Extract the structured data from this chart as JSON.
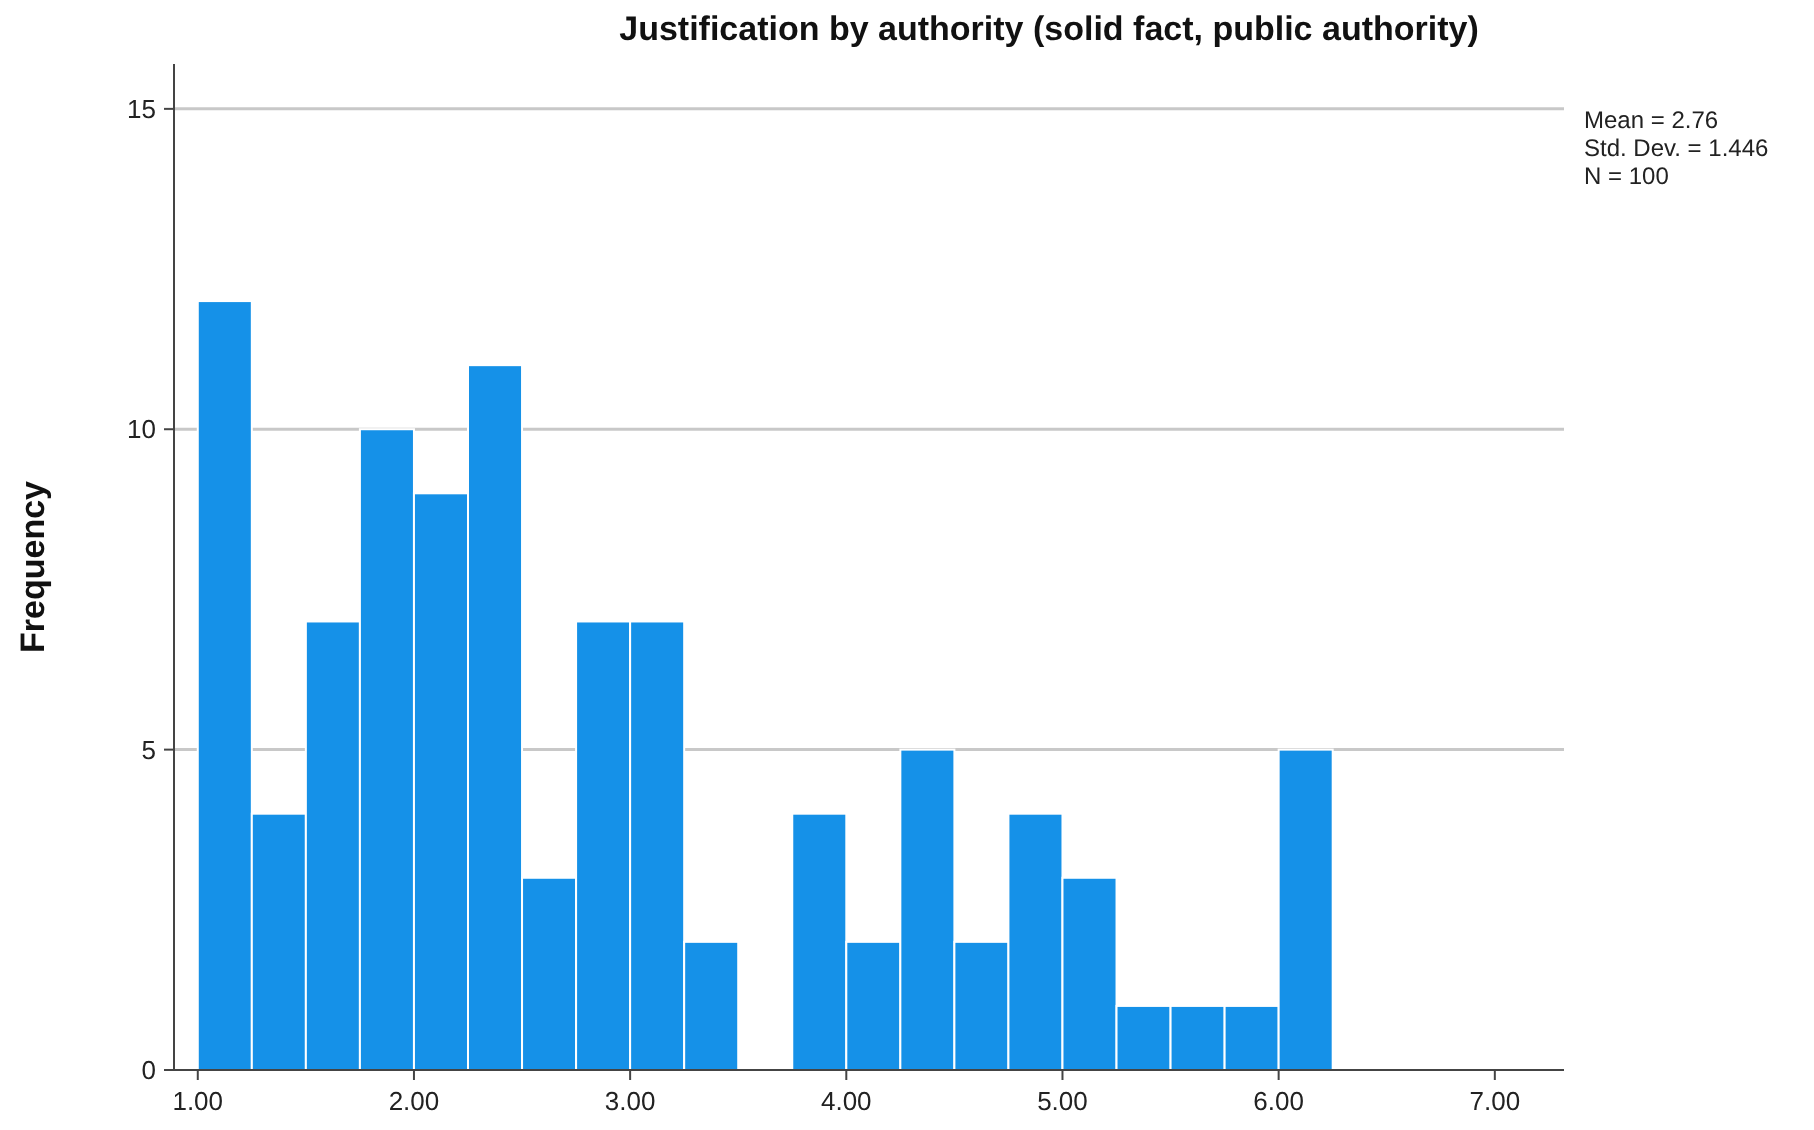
{
  "chart_data": {
    "type": "histogram",
    "title": "Justification by authority (solid fact, public authority)",
    "ylabel": "Frequency",
    "bins": [
      1,
      1.25,
      1.5,
      1.75,
      2,
      2.25,
      2.5,
      2.75,
      3,
      3.25,
      3.5,
      3.75,
      4,
      4.25,
      4.5,
      4.75,
      5,
      5.25,
      5.5,
      5.75,
      6,
      6.25
    ],
    "values": [
      12,
      4,
      7,
      10,
      9,
      11,
      3,
      7,
      7,
      2,
      0,
      4,
      2,
      5,
      2,
      4,
      3,
      1,
      1,
      1,
      5
    ],
    "color": "#1591e8",
    "xlim": [
      0.89,
      7.32
    ],
    "xticks": [
      {
        "value": 1,
        "label": "1.00"
      },
      {
        "value": 2,
        "label": "2.00"
      },
      {
        "value": 3,
        "label": "3.00"
      },
      {
        "value": 4,
        "label": "4.00"
      },
      {
        "value": 5,
        "label": "5.00"
      },
      {
        "value": 6,
        "label": "6.00"
      },
      {
        "value": 7,
        "label": "7.00"
      }
    ],
    "ylim": [
      0,
      15.7
    ],
    "yticks": [
      0,
      5,
      10,
      15
    ],
    "grid": "y",
    "annotations": [
      "Mean = 2.76",
      "Std. Dev. = 1.446",
      "N = 100"
    ]
  }
}
